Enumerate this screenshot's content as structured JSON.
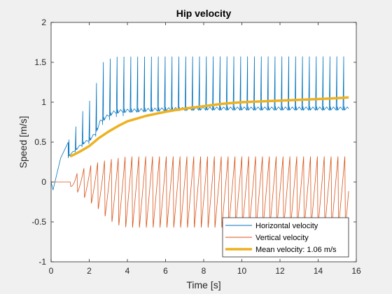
{
  "chart_data": {
    "type": "line",
    "title": "Hip velocity",
    "xlabel": "Time [s]",
    "ylabel": "Speed [m/s]",
    "xlim": [
      0,
      16
    ],
    "ylim": [
      -1,
      2
    ],
    "xticks": [
      0,
      2,
      4,
      6,
      8,
      10,
      12,
      14,
      16
    ],
    "xtick_labels": [
      "0",
      "2",
      "4",
      "6",
      "8",
      "10",
      "12",
      "14",
      "16"
    ],
    "yticks": [
      -1,
      -0.5,
      0,
      0.5,
      1,
      1.5,
      2
    ],
    "ytick_labels": [
      "-1",
      "-0.5",
      "0",
      "0.5",
      "1",
      "1.5",
      "2"
    ],
    "grid": false,
    "legend_position": "bottom-right",
    "colors": {
      "horizontal": "#0072bd",
      "vertical": "#d95319",
      "mean": "#edb120"
    },
    "series": [
      {
        "name": "Horizontal velocity",
        "description": "oscillating, about 2 peaks per second, peaks rise from ~0.45 to ~1.63 by t=3.5 s then remain constant; troughs near 0.75-0.85",
        "x": [
          0.0,
          0.1,
          0.5,
          0.8,
          0.9,
          1.0,
          1.3,
          1.5,
          1.7,
          2.0,
          2.3,
          2.6,
          2.9,
          3.2,
          3.5,
          4.0,
          5.0,
          6.0,
          8.0,
          10.0,
          12.0,
          14.0,
          15.6
        ],
        "peaks": [
          0.0,
          -0.1,
          0.3,
          0.45,
          0.5,
          0.62,
          0.72,
          0.82,
          0.95,
          1.05,
          1.2,
          1.55,
          1.58,
          1.62,
          1.63,
          1.63,
          1.63,
          1.63,
          1.63,
          1.63,
          1.63,
          1.63,
          1.63
        ],
        "troughs": [
          0.0,
          -0.1,
          0.15,
          0.25,
          0.3,
          0.32,
          0.38,
          0.42,
          0.45,
          0.48,
          0.55,
          0.7,
          0.75,
          0.8,
          0.82,
          0.83,
          0.84,
          0.85,
          0.86,
          0.86,
          0.86,
          0.86,
          0.86
        ]
      },
      {
        "name": "Vertical velocity",
        "description": "oscillating, about 2 cycles per second, peaks ~0.32, troughs grow from ~-0.15 to ~-0.58",
        "x": [
          0.0,
          0.9,
          1.0,
          1.5,
          2.0,
          2.5,
          3.0,
          3.5,
          4.0,
          6.0,
          10.0,
          15.6
        ],
        "peaks": [
          0.0,
          0.0,
          0.0,
          0.15,
          0.2,
          0.25,
          0.28,
          0.3,
          0.32,
          0.32,
          0.32,
          0.32
        ],
        "troughs": [
          0.0,
          0.0,
          -0.05,
          -0.15,
          -0.25,
          -0.35,
          -0.48,
          -0.55,
          -0.58,
          -0.58,
          -0.58,
          -0.58
        ]
      },
      {
        "name": "Mean velocity: 1.06 m/s",
        "x": [
          1.0,
          1.5,
          2.0,
          2.5,
          3.0,
          3.5,
          4.0,
          5.0,
          6.0,
          7.0,
          8.0,
          9.0,
          10.0,
          11.0,
          12.0,
          13.0,
          14.0,
          15.0,
          15.6
        ],
        "values": [
          0.32,
          0.38,
          0.45,
          0.55,
          0.63,
          0.7,
          0.76,
          0.83,
          0.88,
          0.92,
          0.95,
          0.98,
          1.0,
          1.01,
          1.02,
          1.03,
          1.04,
          1.05,
          1.06
        ]
      }
    ]
  }
}
